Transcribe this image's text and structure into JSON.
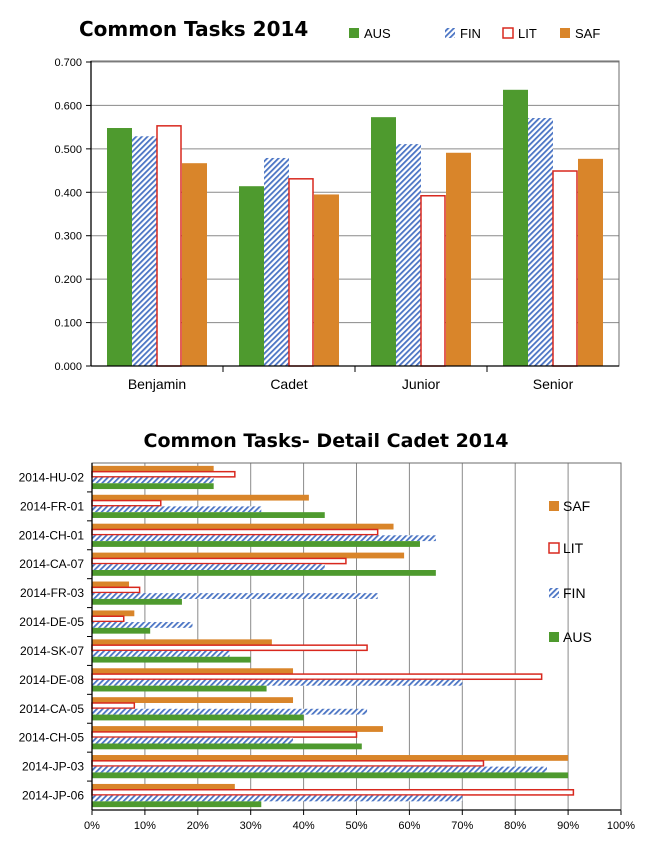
{
  "chart_data": [
    {
      "type": "bar",
      "title": "Common Tasks  2014",
      "categories": [
        "Benjamin",
        "Cadet",
        "Junior",
        "Senior"
      ],
      "series": [
        {
          "name": "AUS",
          "values": [
            0.548,
            0.414,
            0.573,
            0.636
          ]
        },
        {
          "name": "FIN",
          "values": [
            0.529,
            0.479,
            0.511,
            0.571
          ]
        },
        {
          "name": "LIT",
          "values": [
            0.553,
            0.431,
            0.392,
            0.449
          ]
        },
        {
          "name": "SAF",
          "values": [
            0.467,
            0.395,
            0.491,
            0.477
          ]
        }
      ],
      "ylim": [
        0,
        0.7
      ],
      "yticks": [
        "0.000",
        "0.100",
        "0.200",
        "0.300",
        "0.400",
        "0.500",
        "0.600",
        "0.700"
      ],
      "legend_position": "top",
      "colors": {
        "AUS": "#4e9a2e",
        "FIN": "#4a74c4",
        "LIT": "#d8281e",
        "SAF": "#d9852a"
      },
      "grid": true
    },
    {
      "type": "bar",
      "orientation": "horizontal",
      "title": "Common Tasks- Detail  Cadet 2014",
      "categories": [
        "2014-HU-02",
        "2014-FR-01",
        "2014-CH-01",
        "2014-CA-07",
        "2014-FR-03",
        "2014-DE-05",
        "2014-SK-07",
        "2014-DE-08",
        "2014-CA-05",
        "2014-CH-05",
        "2014-JP-03",
        "2014-JP-06"
      ],
      "series": [
        {
          "name": "SAF",
          "values": [
            23,
            41,
            57,
            59,
            7,
            8,
            34,
            38,
            38,
            55,
            90,
            27
          ]
        },
        {
          "name": "LIT",
          "values": [
            27,
            13,
            54,
            48,
            9,
            6,
            52,
            85,
            8,
            50,
            74,
            91
          ]
        },
        {
          "name": "FIN",
          "values": [
            23,
            32,
            65,
            44,
            54,
            19,
            26,
            70,
            52,
            38,
            86,
            70
          ]
        },
        {
          "name": "AUS",
          "values": [
            23,
            44,
            62,
            65,
            17,
            11,
            30,
            33,
            40,
            51,
            90,
            32
          ]
        }
      ],
      "xlim": [
        0,
        100
      ],
      "xticks": [
        "0%",
        "10%",
        "20%",
        "30%",
        "40%",
        "50%",
        "60%",
        "70%",
        "80%",
        "90%",
        "100%"
      ],
      "legend_position": "right",
      "colors": {
        "SAF": "#d9852a",
        "LIT": "#d8281e",
        "FIN": "#4a74c4",
        "AUS": "#4e9a2e"
      },
      "grid": true
    }
  ]
}
